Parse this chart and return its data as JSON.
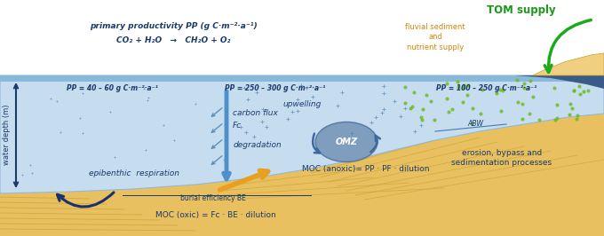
{
  "bg_color": "#ffffff",
  "water_color": "#c5ddef",
  "water_dark_color": "#8ab4d0",
  "sand_color": "#e8c060",
  "sand_light": "#f0d080",
  "sand_line": "#c8a030",
  "dark_blue": "#1a3a6b",
  "mid_blue": "#4878a8",
  "text_dark_blue": "#1a3a6b",
  "text_blue_label": "#2a4a8a",
  "text_orange": "#d4860a",
  "text_green": "#1a9a1a",
  "arrow_green": "#1aaa1a",
  "omz_color": "#7090b8",
  "downwelling_color": "#6090c0",
  "pp_left": "PP = 40 – 60 g C·m⁻²·a⁻¹",
  "pp_mid": "PP = 250 – 300 g C·m⁻²·a⁻¹",
  "pp_right": "PP = 100 – 250 g C·m⁻²·a⁻¹",
  "label_primary1": "primary productivity PP (g C·m⁻²·a⁻¹)",
  "label_co2_eq": "CO₂ + H₂O   →   CH₂O + O₂",
  "label_carbon_flux": "carbon flux",
  "label_fc": "Fc",
  "label_degradation": "degradation",
  "label_epibenthic": "epibenthic  respiration",
  "label_upwelling": "upwelling",
  "label_omz": "OMZ",
  "label_abw": "ABW",
  "label_burial": "burial efficiency BE",
  "label_moc_oxic": "MOC (oxic) = Fc · BE · dilution",
  "label_moc_anoxic": "MOC (anoxic)= PP · PF · dilution",
  "label_erosion": "erosion, bypass and\nsedimentation processes",
  "label_tom": "TOM supply",
  "label_fluvial": "fluvial sediment\nand\nnutrient supply",
  "label_water_depth": "water depth (m)"
}
